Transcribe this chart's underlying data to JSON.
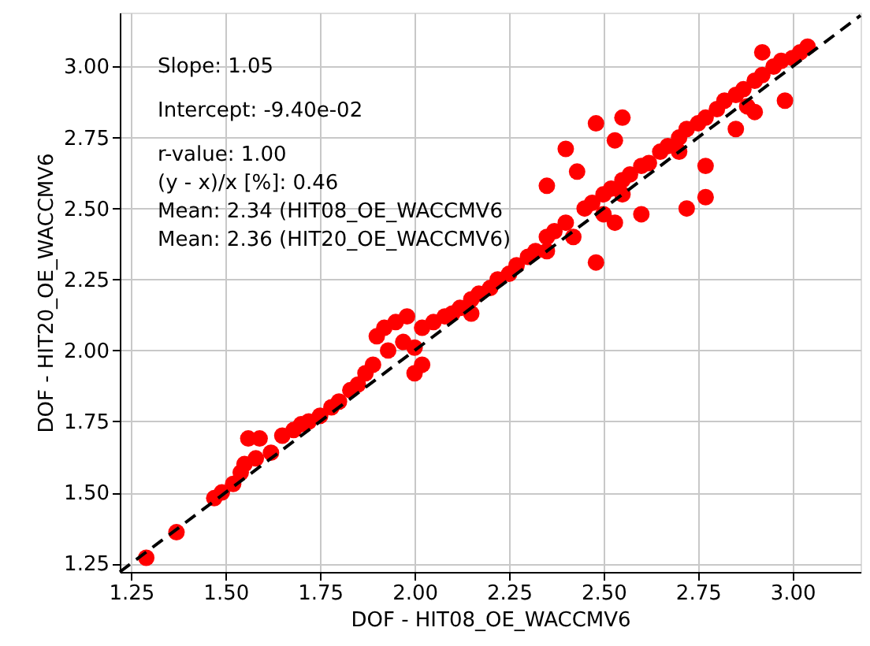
{
  "chart_data": {
    "type": "scatter",
    "xlabel": "DOF - HIT08_OE_WACCMV6",
    "ylabel": "DOF - HIT20_OE_WACCMV6",
    "xlim": [
      1.22,
      3.18
    ],
    "ylim": [
      1.22,
      3.19
    ],
    "xticks": [
      {
        "value": 1.25,
        "label": "1.25"
      },
      {
        "value": 1.5,
        "label": "1.50"
      },
      {
        "value": 1.75,
        "label": "1.75"
      },
      {
        "value": 2.0,
        "label": "2.00"
      },
      {
        "value": 2.25,
        "label": "2.25"
      },
      {
        "value": 2.5,
        "label": "2.50"
      },
      {
        "value": 2.75,
        "label": "2.75"
      },
      {
        "value": 3.0,
        "label": "3.00"
      }
    ],
    "yticks": [
      {
        "value": 1.25,
        "label": "1.25"
      },
      {
        "value": 1.5,
        "label": "1.50"
      },
      {
        "value": 1.75,
        "label": "1.75"
      },
      {
        "value": 2.0,
        "label": "2.00"
      },
      {
        "value": 2.25,
        "label": "2.25"
      },
      {
        "value": 2.5,
        "label": "2.50"
      },
      {
        "value": 2.75,
        "label": "2.75"
      },
      {
        "value": 3.0,
        "label": "3.00"
      }
    ],
    "grid": true,
    "annotations": [
      "Slope: 1.05",
      "Intercept: -9.40e-02",
      "r-value: 1.00",
      "(y - x)/x [%]: 0.46",
      "Mean: 2.34 (HIT08_OE_WACCMV6",
      "Mean: 2.36 (HIT20_OE_WACCMV6)"
    ],
    "series": [
      {
        "type": "scatter",
        "color": "#ff0000",
        "marker": "circle",
        "x": [
          1.29,
          1.37,
          1.47,
          1.49,
          1.52,
          1.54,
          1.55,
          1.56,
          1.59,
          1.58,
          1.62,
          1.65,
          1.68,
          1.7,
          1.72,
          1.75,
          1.78,
          1.8,
          1.83,
          1.85,
          1.87,
          1.89,
          1.9,
          1.92,
          1.93,
          1.95,
          1.97,
          1.98,
          2.0,
          2.0,
          2.02,
          2.02,
          2.05,
          2.08,
          2.1,
          2.12,
          2.15,
          2.17,
          2.2,
          2.22,
          2.25,
          2.27,
          2.3,
          2.32,
          2.35,
          2.37,
          2.4,
          2.42,
          2.45,
          2.47,
          2.5,
          2.5,
          2.52,
          2.55,
          2.57,
          2.6,
          2.62,
          2.65,
          2.67,
          2.7,
          2.72,
          2.75,
          2.77,
          2.8,
          2.82,
          2.85,
          2.87,
          2.9,
          2.92,
          2.95,
          2.97,
          3.0,
          3.02,
          2.88,
          2.7,
          2.55,
          2.35,
          2.15,
          2.48,
          2.77,
          2.77,
          2.72,
          2.85,
          2.98,
          2.9,
          2.4,
          2.48,
          2.55,
          2.53,
          2.35,
          2.43,
          2.6,
          2.53,
          2.92,
          3.04
        ],
        "values": [
          1.27,
          1.36,
          1.48,
          1.5,
          1.53,
          1.57,
          1.6,
          1.69,
          1.69,
          1.62,
          1.64,
          1.7,
          1.72,
          1.74,
          1.75,
          1.77,
          1.8,
          1.82,
          1.86,
          1.88,
          1.92,
          1.95,
          2.05,
          2.08,
          2.0,
          2.1,
          2.03,
          2.12,
          2.01,
          1.92,
          1.95,
          2.08,
          2.1,
          2.12,
          2.13,
          2.15,
          2.18,
          2.2,
          2.22,
          2.25,
          2.27,
          2.3,
          2.33,
          2.35,
          2.4,
          2.42,
          2.45,
          2.4,
          2.5,
          2.52,
          2.55,
          2.48,
          2.57,
          2.6,
          2.62,
          2.65,
          2.66,
          2.7,
          2.72,
          2.75,
          2.78,
          2.8,
          2.82,
          2.85,
          2.88,
          2.9,
          2.92,
          2.95,
          2.97,
          3.0,
          3.02,
          3.03,
          3.05,
          2.86,
          2.7,
          2.55,
          2.35,
          2.13,
          2.31,
          2.54,
          2.65,
          2.5,
          2.78,
          2.88,
          2.84,
          2.71,
          2.8,
          2.82,
          2.74,
          2.58,
          2.63,
          2.48,
          2.45,
          3.05,
          3.07
        ]
      },
      {
        "type": "line",
        "color": "#000000",
        "line_style": "dashed",
        "marker": "none",
        "x": [
          1.22,
          3.18
        ],
        "values": [
          1.22,
          3.18
        ]
      }
    ]
  }
}
